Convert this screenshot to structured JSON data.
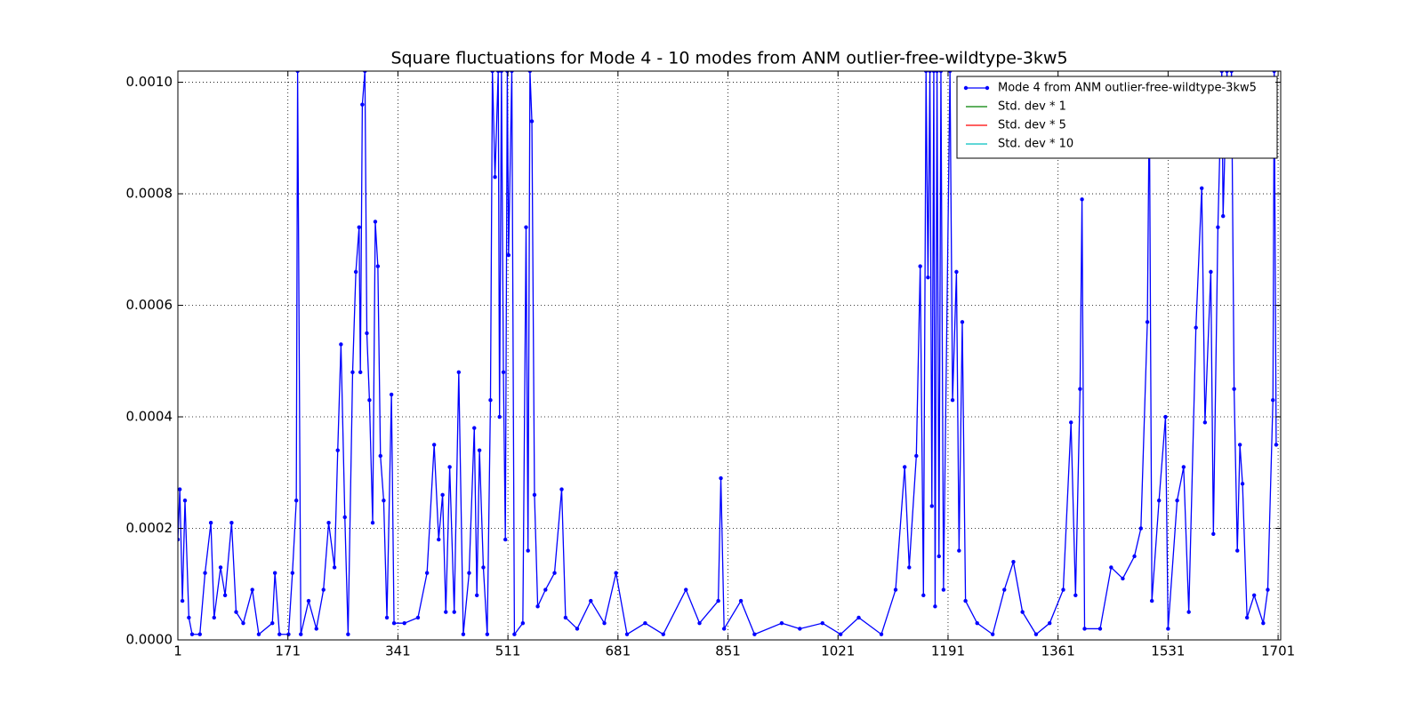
{
  "chart_data": {
    "type": "line",
    "title": "Square fluctuations for Mode 4 - 10 modes from ANM outlier-free-wildtype-3kw5",
    "x": [
      1,
      4,
      8,
      12,
      18,
      23,
      35,
      43,
      52,
      57,
      67,
      74,
      84,
      91,
      102,
      116,
      126,
      147,
      151,
      158,
      172,
      178,
      184,
      186,
      191,
      203,
      215,
      226,
      234,
      243,
      248,
      253,
      259,
      264,
      271,
      276,
      281,
      283,
      286,
      290,
      293,
      297,
      302,
      306,
      310,
      314,
      319,
      324,
      331,
      335,
      351,
      372,
      386,
      397,
      404,
      410,
      415,
      421,
      428,
      435,
      442,
      451,
      459,
      463,
      467,
      473,
      479,
      484,
      487,
      491,
      496,
      498,
      501,
      504,
      507,
      510,
      512,
      517,
      521,
      534,
      539,
      542,
      545,
      548,
      552,
      557,
      569,
      583,
      594,
      600,
      618,
      639,
      660,
      678,
      695,
      723,
      751,
      786,
      807,
      836,
      840,
      845,
      871,
      892,
      934,
      962,
      997,
      1025,
      1053,
      1088,
      1110,
      1124,
      1131,
      1142,
      1148,
      1153,
      1157,
      1160,
      1163,
      1166,
      1169,
      1171,
      1174,
      1177,
      1180,
      1184,
      1194,
      1198,
      1204,
      1208,
      1213,
      1218,
      1236,
      1260,
      1278,
      1292,
      1306,
      1327,
      1348,
      1369,
      1381,
      1388,
      1395,
      1398,
      1402,
      1426,
      1443,
      1461,
      1479,
      1489,
      1499,
      1502,
      1506,
      1517,
      1527,
      1531,
      1545,
      1555,
      1563,
      1574,
      1583,
      1588,
      1597,
      1601,
      1608,
      1614,
      1616,
      1622,
      1625,
      1629,
      1633,
      1638,
      1642,
      1646,
      1653,
      1664,
      1678,
      1685,
      1693,
      1695,
      1698
    ],
    "series": [
      {
        "name": "Mode 4 from ANM outlier-free-wildtype-3kw5",
        "color": "#0000ff",
        "values": [
          0.00018,
          0.00027,
          7e-05,
          0.00025,
          4e-05,
          1e-05,
          1e-05,
          0.00012,
          0.00021,
          4e-05,
          0.00013,
          8e-05,
          0.00021,
          5e-05,
          3e-05,
          9e-05,
          1e-05,
          3e-05,
          0.00012,
          1e-05,
          1e-05,
          0.00012,
          0.00025,
          0.00102,
          1e-05,
          7e-05,
          2e-05,
          9e-05,
          0.00021,
          0.00013,
          0.00034,
          0.00053,
          0.00022,
          1e-05,
          0.00048,
          0.00066,
          0.00074,
          0.00048,
          0.00096,
          0.00102,
          0.00055,
          0.00043,
          0.00021,
          0.00075,
          0.00067,
          0.00033,
          0.00025,
          4e-05,
          0.00044,
          3e-05,
          3e-05,
          4e-05,
          0.00012,
          0.00035,
          0.00018,
          0.00026,
          5e-05,
          0.00031,
          5e-05,
          0.00048,
          1e-05,
          0.00012,
          0.00038,
          8e-05,
          0.00034,
          0.00013,
          1e-05,
          0.00043,
          0.00102,
          0.00083,
          0.00102,
          0.0004,
          0.00102,
          0.00048,
          0.00018,
          0.00102,
          0.00069,
          0.00102,
          1e-05,
          3e-05,
          0.00074,
          0.00016,
          0.00102,
          0.00093,
          0.00026,
          6e-05,
          9e-05,
          0.00012,
          0.00027,
          4e-05,
          2e-05,
          7e-05,
          3e-05,
          0.00012,
          1e-05,
          3e-05,
          1e-05,
          9e-05,
          3e-05,
          7e-05,
          0.00029,
          2e-05,
          7e-05,
          1e-05,
          3e-05,
          2e-05,
          3e-05,
          1e-05,
          4e-05,
          1e-05,
          9e-05,
          0.00031,
          0.00013,
          0.00033,
          0.00067,
          8e-05,
          0.00102,
          0.00065,
          0.00102,
          0.00024,
          0.00102,
          6e-05,
          0.00102,
          0.00015,
          0.00102,
          9e-05,
          0.00102,
          0.00043,
          0.00066,
          0.00016,
          0.00057,
          7e-05,
          3e-05,
          1e-05,
          9e-05,
          0.00014,
          5e-05,
          1e-05,
          3e-05,
          9e-05,
          0.00039,
          8e-05,
          0.00045,
          0.00079,
          2e-05,
          2e-05,
          0.00013,
          0.00011,
          0.00015,
          0.0002,
          0.00057,
          0.00098,
          7e-05,
          0.00025,
          0.0004,
          2e-05,
          0.00025,
          0.00031,
          5e-05,
          0.00056,
          0.00081,
          0.00039,
          0.00066,
          0.00019,
          0.00074,
          0.00102,
          0.00076,
          0.00102,
          0.00087,
          0.00102,
          0.00045,
          0.00016,
          0.00035,
          0.00028,
          4e-05,
          8e-05,
          3e-05,
          9e-05,
          0.00043,
          0.00102,
          0.00035
        ]
      },
      {
        "name": "Std. dev * 1",
        "color": "#008000"
      },
      {
        "name": "Std. dev * 5",
        "color": "#ff0000"
      },
      {
        "name": "Std. dev * 10",
        "color": "#00bfbf"
      }
    ],
    "xlim": [
      1,
      1705
    ],
    "xticks": [
      1,
      171,
      341,
      511,
      681,
      851,
      1021,
      1191,
      1361,
      1531,
      1701
    ],
    "ylim": [
      0,
      0.00102
    ],
    "yticks": [
      {
        "value": 0,
        "label": "0.0000"
      },
      {
        "value": 0.0002,
        "label": "0.0002"
      },
      {
        "value": 0.0004,
        "label": "0.0004"
      },
      {
        "value": 0.0006,
        "label": "0.0006"
      },
      {
        "value": 0.0008,
        "label": "0.0008"
      },
      {
        "value": 0.001,
        "label": "0.0010"
      }
    ],
    "grid": true,
    "legend": "upper right"
  }
}
